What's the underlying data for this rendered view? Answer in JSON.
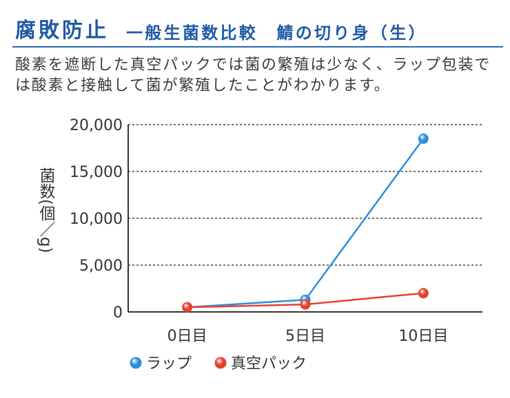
{
  "header": {
    "title": "腐敗防止",
    "subtitle": "一般生菌数比較　鯖の切り身（生）"
  },
  "description": {
    "lines": [
      "酸素を遮断した真空パックでは菌の繁殖は少なく、ラップ包装で",
      "は酸素と接触して菌が繁殖したことがわかります。"
    ]
  },
  "colors": {
    "accent": "#1f5aa6",
    "text": "#3a3a3a"
  },
  "chart_data": {
    "type": "line",
    "ylabel": "菌数(個／g)",
    "categories": [
      "0日目",
      "5日目",
      "10日目"
    ],
    "ylim": [
      0,
      20000
    ],
    "yticks": [
      0,
      5000,
      10000,
      15000,
      20000
    ],
    "ytick_labels": [
      "0",
      "5,000",
      "10,000",
      "15,000",
      "20,000"
    ],
    "grid": true,
    "grid_style": "dotted",
    "legend": "bottom-left",
    "series": [
      {
        "name": "ラップ",
        "color": "#2a8ede",
        "values": [
          500,
          1300,
          18500
        ]
      },
      {
        "name": "真空パック",
        "color": "#e8402e",
        "values": [
          500,
          800,
          2000
        ]
      }
    ]
  }
}
